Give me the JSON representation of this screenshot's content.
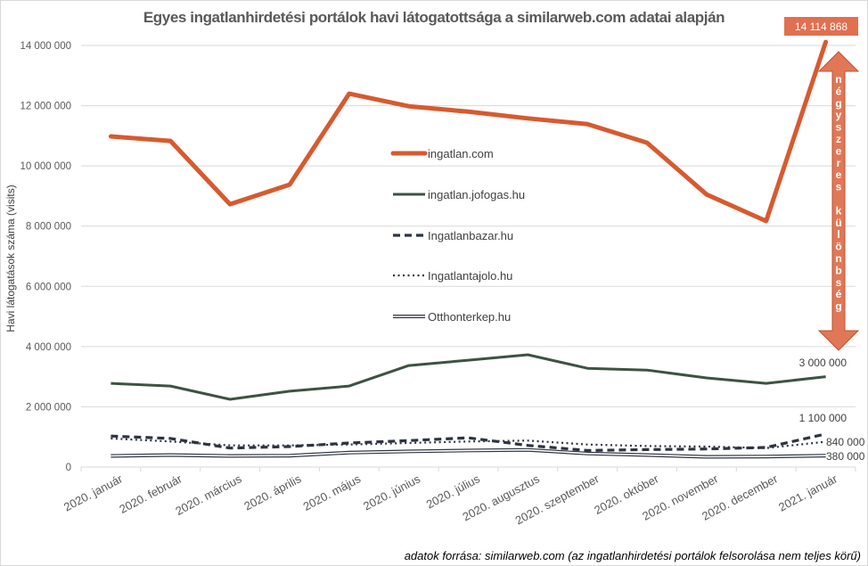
{
  "chart_data": {
    "type": "line",
    "title": "Egyes ingatlanhirdetési portálok havi látogatottsága a similarweb.com adatai alapján",
    "xlabel": "",
    "ylabel": "Havi látogatások  száma (visits)",
    "ylim": [
      0,
      14000000
    ],
    "yticks": [
      0,
      2000000,
      4000000,
      6000000,
      8000000,
      10000000,
      12000000,
      14000000
    ],
    "ytick_labels": [
      "0",
      "2 000 000",
      "4 000 000",
      "6 000 000",
      "8 000 000",
      "10 000 000",
      "12 000 000",
      "14 000 000"
    ],
    "grid": true,
    "legend_position": "center",
    "categories": [
      "2020. január",
      "2020. február",
      "2020. március",
      "2020. április",
      "2020. május",
      "2020. június",
      "2020. július",
      "2020. augusztus",
      "2020. szeptember",
      "2020. október",
      "2020. november",
      "2020. december",
      "2021. január"
    ],
    "series": [
      {
        "name": "ingatlan.com",
        "color": "#d75a2f",
        "style": "solid-thick",
        "values": [
          10980000,
          10830000,
          8730000,
          9380000,
          12400000,
          11980000,
          11800000,
          11580000,
          11390000,
          10770000,
          9050000,
          8170000,
          14114868
        ]
      },
      {
        "name": "ingatlan.jofogas.hu",
        "color": "#3e5243",
        "style": "solid",
        "values": [
          2780000,
          2690000,
          2250000,
          2520000,
          2690000,
          3370000,
          3550000,
          3730000,
          3280000,
          3220000,
          2960000,
          2780000,
          3000000
        ]
      },
      {
        "name": "Ingatlanbazar.hu",
        "color": "#2e3440",
        "style": "dashed",
        "values": [
          1030000,
          950000,
          630000,
          680000,
          800000,
          880000,
          970000,
          720000,
          550000,
          580000,
          600000,
          650000,
          1100000
        ]
      },
      {
        "name": "Ingatlantajolo.hu",
        "color": "#2e3440",
        "style": "dotted",
        "values": [
          950000,
          850000,
          720000,
          720000,
          750000,
          800000,
          850000,
          880000,
          750000,
          700000,
          680000,
          630000,
          840000
        ]
      },
      {
        "name": "Otthonterkep.hu",
        "color": "#2e3440",
        "style": "double",
        "values": [
          370000,
          400000,
          370000,
          380000,
          480000,
          520000,
          550000,
          570000,
          450000,
          400000,
          340000,
          350000,
          380000
        ]
      }
    ],
    "annotations": {
      "peak_badge": "14 114 868",
      "peak_badge_color": "#e07050",
      "arrow_text": "négyszeres különbség",
      "arrow_letters": [
        "n",
        "é",
        "g",
        "y",
        "s",
        "z",
        "e",
        "r",
        "e",
        "s",
        "",
        "k",
        "ü",
        "l",
        "ö",
        "n",
        "b",
        "s",
        "é",
        "g"
      ],
      "arrow_color": "#e07858",
      "end_labels": [
        "3 000 000",
        "1 100 000",
        "840 000",
        "380 000"
      ]
    },
    "source": "adatok forrása: similarweb.com (az ingatlanhirdetési portálok felsorolása nem teljes körű)"
  }
}
